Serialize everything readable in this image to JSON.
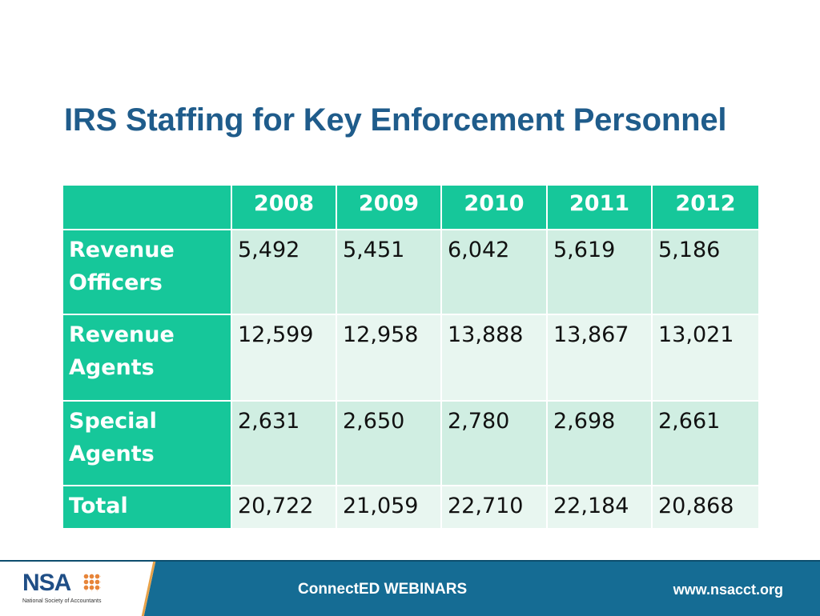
{
  "title": "IRS Staffing for Key Enforcement Personnel",
  "colors": {
    "title": "#1f5c8b",
    "header_fill": "#16c79a",
    "row_fill_dark": "#d0eee2",
    "row_fill_light": "#e8f6f0",
    "footer_fill": "#156c94"
  },
  "table": {
    "corner": "",
    "columns": [
      "2008",
      "2009",
      "2010",
      "2011",
      "2012"
    ],
    "rows": [
      {
        "label": "Revenue Officers",
        "values": [
          "5,492",
          "5,451",
          "6,042",
          "5,619",
          "5,186"
        ]
      },
      {
        "label": "Revenue Agents",
        "values": [
          "12,599",
          "12,958",
          "13,888",
          "13,867",
          "13,021"
        ]
      },
      {
        "label": "Special Agents",
        "values": [
          "2,631",
          "2,650",
          "2,780",
          "2,698",
          "2,661"
        ]
      },
      {
        "label": "Total",
        "values": [
          "20,722",
          "21,059",
          "22,710",
          "22,184",
          "20,868"
        ]
      }
    ]
  },
  "footer": {
    "logo_text": "NSA",
    "logo_subtitle": "National Society of Accountants",
    "center_text": "ConnectED WEBINARS",
    "url": "www.nsacct.org"
  }
}
